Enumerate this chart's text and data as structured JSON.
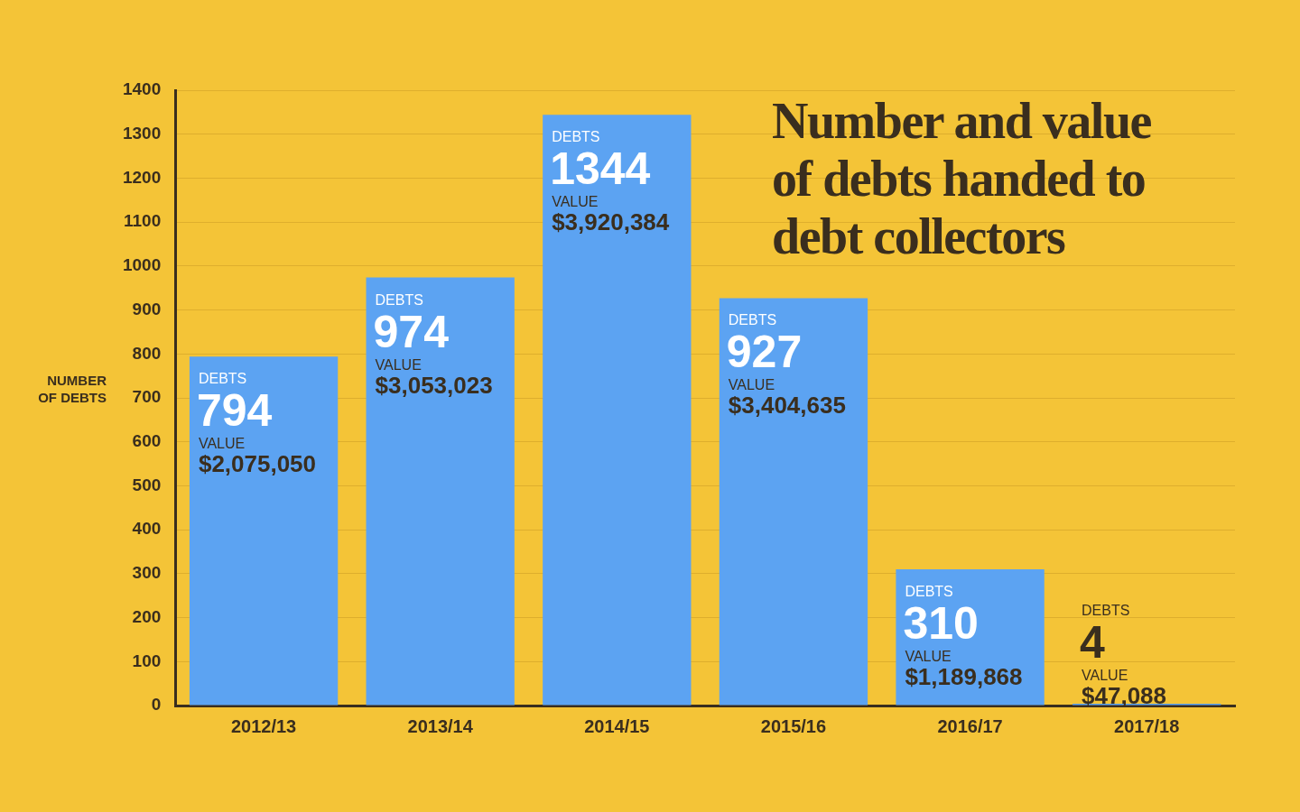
{
  "chart_data": {
    "type": "bar",
    "title": "Number and value of debts handed to debt collectors",
    "ylabel": "NUMBER OF DEBTS",
    "categories": [
      "2012/13",
      "2013/14",
      "2014/15",
      "2015/16",
      "2016/17",
      "2017/18"
    ],
    "values": [
      794,
      974,
      1344,
      927,
      310,
      4
    ],
    "color": "#5ca3f2",
    "ylim": [
      0,
      1400
    ],
    "yticks": [
      0,
      100,
      200,
      300,
      400,
      500,
      600,
      700,
      800,
      900,
      1000,
      1100,
      1200,
      1300,
      1400
    ],
    "grid": "y",
    "legend": false,
    "data_labels": true,
    "annotations": [
      "DEBTS",
      "VALUE",
      "$2,075,050",
      "DEBTS",
      "VALUE",
      "$3,053,023",
      "DEBTS",
      "VALUE",
      "$3,920,384",
      "DEBTS",
      "VALUE",
      "$3,404,635",
      "DEBTS",
      "VALUE",
      "$1,189,868",
      "DEBTS",
      "VALUE",
      "$47,088"
    ]
  }
}
